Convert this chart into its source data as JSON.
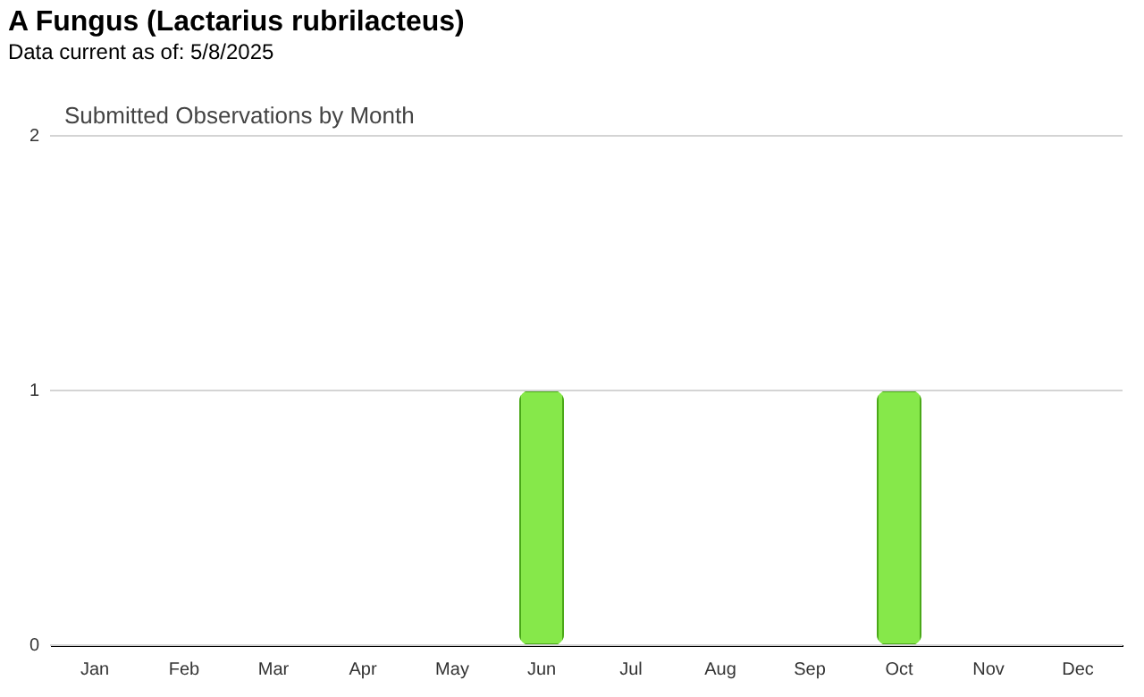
{
  "chart_data": {
    "type": "bar",
    "title": "A Fungus   (Lactarius rubrilacteus)",
    "subtitle": "Data current as of: 5/8/2025",
    "annotations": [
      "Submitted Observations by Month"
    ],
    "categories": [
      "Jan",
      "Feb",
      "Mar",
      "Apr",
      "May",
      "Jun",
      "Jul",
      "Aug",
      "Sep",
      "Oct",
      "Nov",
      "Dec"
    ],
    "values": [
      0,
      0,
      0,
      0,
      0,
      1,
      0,
      0,
      0,
      1,
      0,
      0
    ],
    "color": "#86e84a",
    "ylim": [
      0,
      2
    ],
    "yticks": [
      0,
      1,
      2
    ],
    "grid": "y"
  }
}
